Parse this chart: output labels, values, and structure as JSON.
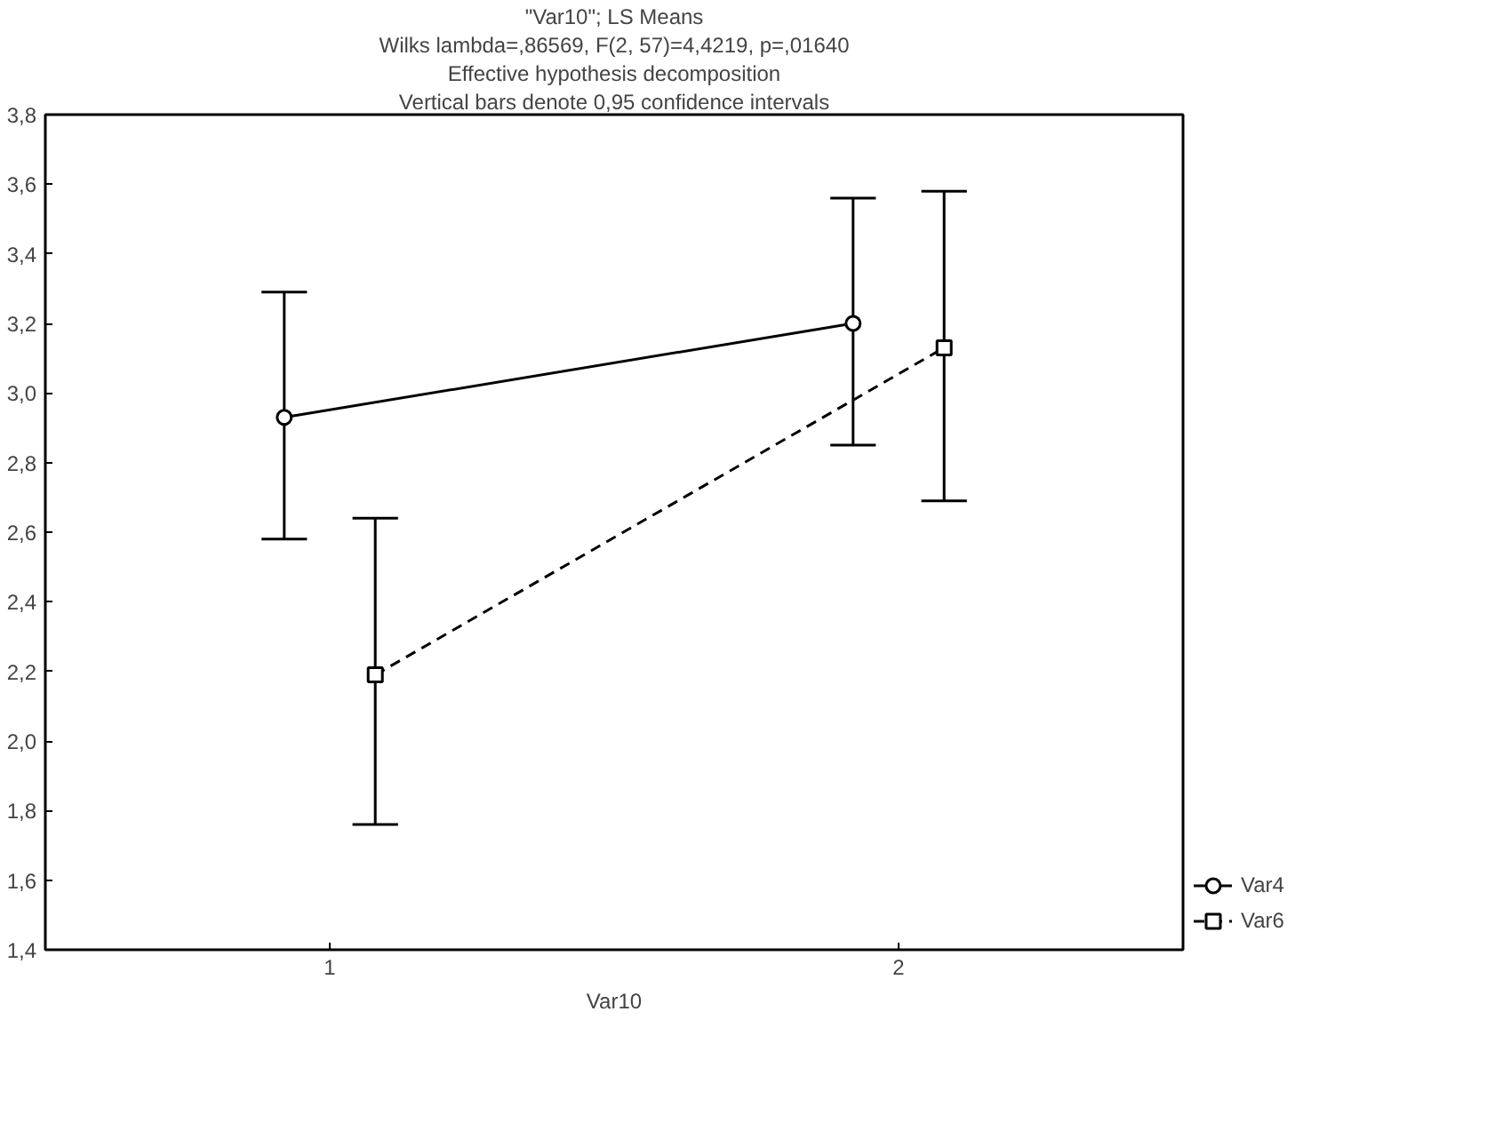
{
  "chart_data": {
    "type": "line",
    "title": "\"Var10\"; LS Means",
    "subtitle": "Wilks lambda=,86569, F(2, 57)=4,4219, p=,01640",
    "annotations": [
      "Effective hypothesis decomposition",
      "Vertical bars denote 0,95 confidence intervals"
    ],
    "xlabel": "Var10",
    "xlim": [
      0.5,
      2.5
    ],
    "xticks": [
      1,
      2
    ],
    "ylim": [
      1.4,
      3.8
    ],
    "yticks": [
      {
        "value": 1.4,
        "label": "1,4"
      },
      {
        "value": 1.6,
        "label": "1,6"
      },
      {
        "value": 1.8,
        "label": "1,8"
      },
      {
        "value": 2.0,
        "label": "2,0"
      },
      {
        "value": 2.2,
        "label": "2,2"
      },
      {
        "value": 2.4,
        "label": "2,4"
      },
      {
        "value": 2.6,
        "label": "2,6"
      },
      {
        "value": 2.8,
        "label": "2,8"
      },
      {
        "value": 3.0,
        "label": "3,0"
      },
      {
        "value": 3.2,
        "label": "3,2"
      },
      {
        "value": 3.4,
        "label": "3,4"
      },
      {
        "value": 3.6,
        "label": "3,6"
      },
      {
        "value": 3.8,
        "label": "3,8"
      }
    ],
    "grid": false,
    "legend": "bottom right",
    "series": [
      {
        "name": "Var4",
        "color": "#000000",
        "marker": "circle",
        "line_style": "solid",
        "x": [
          0.92,
          1.92
        ],
        "values": [
          2.93,
          3.2
        ],
        "errors": [
          [
            2.58,
            3.29
          ],
          [
            2.85,
            3.56
          ]
        ]
      },
      {
        "name": "Var6",
        "color": "#000000",
        "marker": "square",
        "line_style": "dashed",
        "x": [
          1.08,
          2.08
        ],
        "values": [
          2.19,
          3.13
        ],
        "errors": [
          [
            1.76,
            2.64
          ],
          [
            2.69,
            3.58
          ]
        ]
      }
    ]
  }
}
